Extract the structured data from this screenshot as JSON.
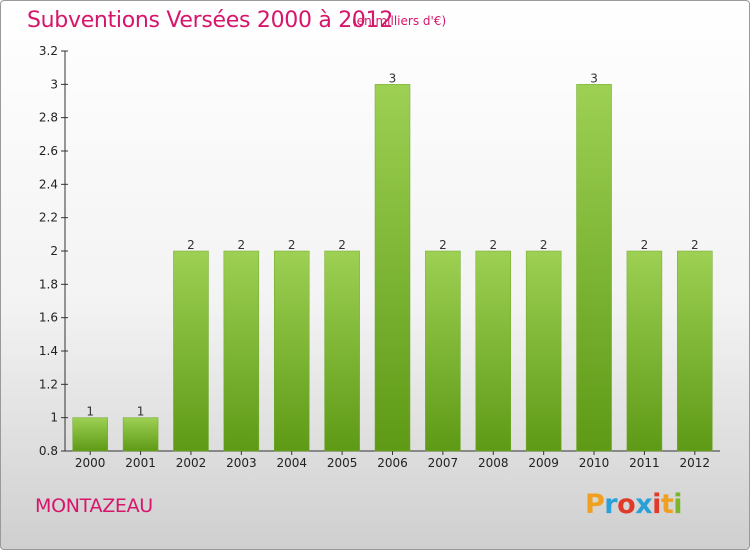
{
  "title": "Subventions Versées 2000 à 2012",
  "unit": "(en milliers d'€)",
  "commune": "MONTAZEAU",
  "logo": {
    "letters": [
      "P",
      "r",
      "o",
      "x",
      "i",
      "t",
      "i"
    ],
    "colors": [
      "#f0a020",
      "#2aa0d8",
      "#e03a2a",
      "#2aa0d8",
      "#e03a2a",
      "#f0a020",
      "#7bb52a"
    ]
  },
  "chart_data": {
    "type": "bar",
    "categories": [
      "2000",
      "2001",
      "2002",
      "2003",
      "2004",
      "2005",
      "2006",
      "2007",
      "2008",
      "2009",
      "2010",
      "2011",
      "2012"
    ],
    "values": [
      1,
      1,
      2,
      2,
      2,
      2,
      3,
      2,
      2,
      2,
      3,
      2,
      2
    ],
    "data_labels": [
      "1",
      "1",
      "2",
      "2",
      "2",
      "2",
      "3",
      "2",
      "2",
      "2",
      "3",
      "2",
      "2"
    ],
    "ylim": [
      0.8,
      3.2
    ],
    "yticks": [
      "0.8",
      "1",
      "1.2",
      "1.4",
      "1.6",
      "1.8",
      "2",
      "2.2",
      "2.4",
      "2.6",
      "2.8",
      "3",
      "3.2"
    ],
    "bar_color": "#8cc63f",
    "grid": false
  }
}
